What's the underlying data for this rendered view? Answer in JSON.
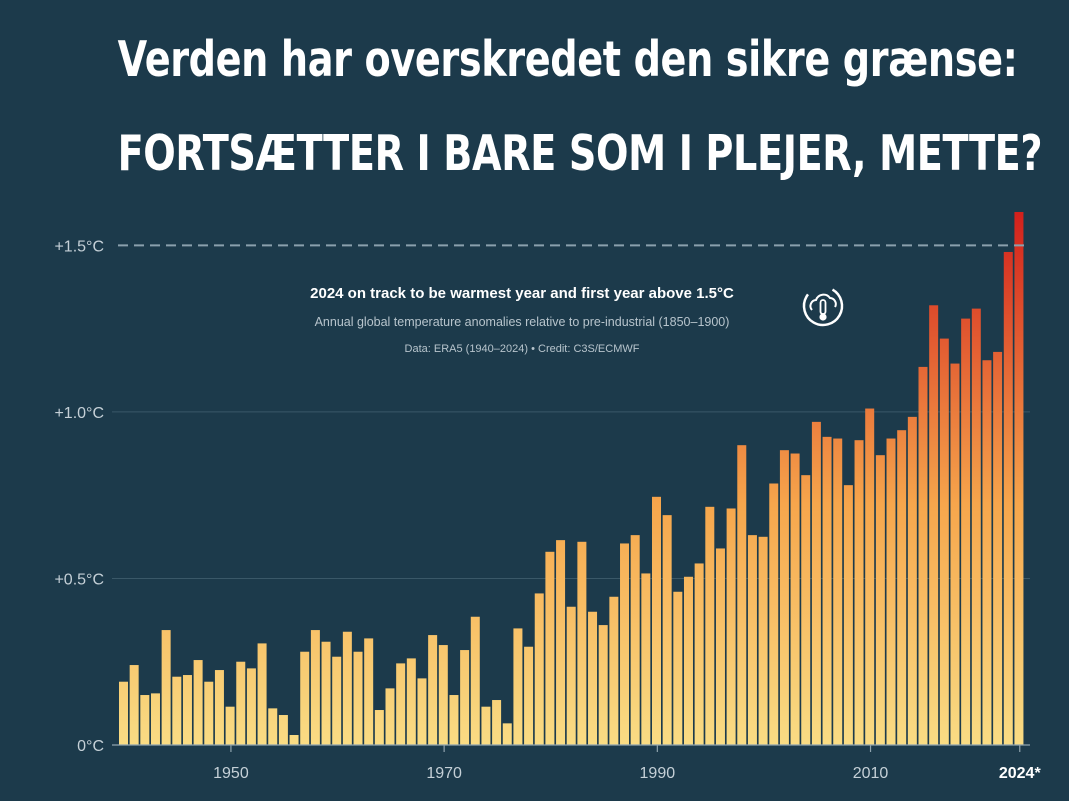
{
  "headline": {
    "line1": "Verden har overskredet den sikre grænse:",
    "line2": "FORTSÆTTER I BARE SOM I PLEJER, METTE?"
  },
  "colors": {
    "background": "#1c3a4b",
    "bar_low": "#f9dc84",
    "bar_high": "#d2201c",
    "threshold_line": "#8aa0ad",
    "text_light": "#ffffff",
    "text_muted": "#c5d0d7"
  },
  "icon": "thermometer-cloud-icon",
  "chart_data": {
    "type": "bar",
    "title": "2024 on track to be warmest year and first year above 1.5°C",
    "subtitle": "Annual global temperature anomalies relative to pre-industrial (1850–1900)",
    "credit": "Data: ERA5 (1940–2024) • Credit: C3S/ECMWF",
    "xlabel": "",
    "ylabel": "",
    "ylim": [
      0,
      1.6
    ],
    "grid": true,
    "y_ticks": [
      {
        "value": 0,
        "label": "0°C"
      },
      {
        "value": 0.5,
        "label": "+0.5°C"
      },
      {
        "value": 1.0,
        "label": "+1.0°C"
      },
      {
        "value": 1.5,
        "label": "+1.5°C"
      }
    ],
    "x_ticks": [
      {
        "value": 1950,
        "label": "1950"
      },
      {
        "value": 1970,
        "label": "1970"
      },
      {
        "value": 1990,
        "label": "1990"
      },
      {
        "value": 2010,
        "label": "2010"
      },
      {
        "value": 2024,
        "label": "2024*"
      }
    ],
    "threshold": 1.5,
    "years": [
      1940,
      1941,
      1942,
      1943,
      1944,
      1945,
      1946,
      1947,
      1948,
      1949,
      1950,
      1951,
      1952,
      1953,
      1954,
      1955,
      1956,
      1957,
      1958,
      1959,
      1960,
      1961,
      1962,
      1963,
      1964,
      1965,
      1966,
      1967,
      1968,
      1969,
      1970,
      1971,
      1972,
      1973,
      1974,
      1975,
      1976,
      1977,
      1978,
      1979,
      1980,
      1981,
      1982,
      1983,
      1984,
      1985,
      1986,
      1987,
      1988,
      1989,
      1990,
      1991,
      1992,
      1993,
      1994,
      1995,
      1996,
      1997,
      1998,
      1999,
      2000,
      2001,
      2002,
      2003,
      2004,
      2005,
      2006,
      2007,
      2008,
      2009,
      2010,
      2011,
      2012,
      2013,
      2014,
      2015,
      2016,
      2017,
      2018,
      2019,
      2020,
      2021,
      2022,
      2023,
      2024
    ],
    "values": [
      0.19,
      0.24,
      0.15,
      0.155,
      0.345,
      0.205,
      0.21,
      0.255,
      0.19,
      0.225,
      0.115,
      0.25,
      0.23,
      0.305,
      0.11,
      0.09,
      0.03,
      0.28,
      0.345,
      0.31,
      0.265,
      0.34,
      0.28,
      0.32,
      0.105,
      0.17,
      0.245,
      0.26,
      0.2,
      0.33,
      0.3,
      0.15,
      0.285,
      0.385,
      0.115,
      0.135,
      0.065,
      0.35,
      0.295,
      0.455,
      0.58,
      0.615,
      0.415,
      0.61,
      0.4,
      0.36,
      0.445,
      0.605,
      0.63,
      0.515,
      0.745,
      0.69,
      0.46,
      0.505,
      0.545,
      0.715,
      0.59,
      0.71,
      0.9,
      0.63,
      0.625,
      0.785,
      0.885,
      0.875,
      0.81,
      0.97,
      0.925,
      0.92,
      0.78,
      0.915,
      1.01,
      0.87,
      0.92,
      0.945,
      0.985,
      1.135,
      1.32,
      1.22,
      1.145,
      1.28,
      1.31,
      1.155,
      1.18,
      1.48,
      1.6
    ]
  }
}
